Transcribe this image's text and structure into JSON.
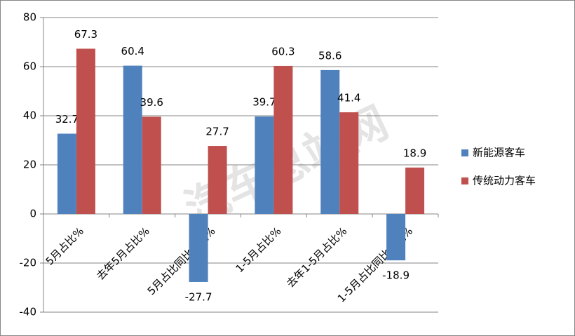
{
  "chart_data": {
    "type": "bar",
    "watermark": "汽车总站网",
    "categories": [
      "5月占比%",
      "去年5月占比%",
      "5月占比同比增减%",
      "1-5月占比%",
      "去年1-5月占比%",
      "1-5月占比同比增减%"
    ],
    "series": [
      {
        "name": "新能源客车",
        "color": "#4f81bd",
        "values": [
          32.7,
          60.4,
          -27.7,
          39.7,
          58.6,
          -18.9
        ]
      },
      {
        "name": "传统动力客车",
        "color": "#c0504d",
        "values": [
          67.3,
          39.6,
          27.7,
          60.3,
          41.4,
          18.9
        ]
      }
    ],
    "ylim": [
      -40,
      80
    ],
    "yticks": [
      -40,
      -20,
      0,
      20,
      40,
      60,
      80
    ],
    "grid": true,
    "legend": "right"
  }
}
